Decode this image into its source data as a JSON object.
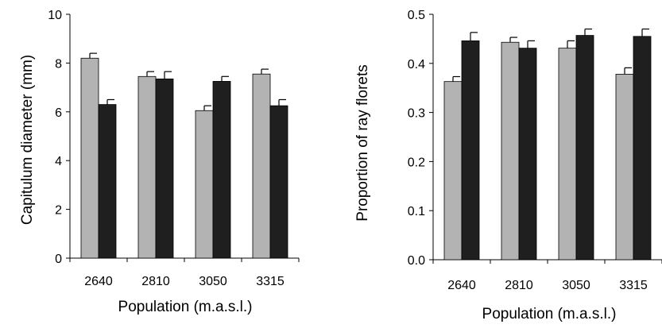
{
  "chart_data": [
    {
      "type": "bar",
      "categories": [
        "2640",
        "2810",
        "3050",
        "3315"
      ],
      "series": [
        {
          "values": [
            8.2,
            7.45,
            6.05,
            7.55
          ],
          "errors": [
            0.2,
            0.2,
            0.2,
            0.2
          ],
          "color": "#b3b3b3"
        },
        {
          "values": [
            6.3,
            7.35,
            7.25,
            6.25
          ],
          "errors": [
            0.2,
            0.3,
            0.2,
            0.25
          ],
          "color": "#1f1f1f"
        }
      ],
      "xlabel": "Population (m.a.s.l.)",
      "ylabel": "Capitulum diameter (mm)",
      "ylim": [
        0,
        10
      ],
      "yticks": [
        "0",
        "2",
        "4",
        "6",
        "8",
        "10"
      ],
      "ytick_values": [
        0,
        2,
        4,
        6,
        8,
        10
      ],
      "grid": false
    },
    {
      "type": "bar",
      "categories": [
        "2640",
        "2810",
        "3050",
        "3315"
      ],
      "series": [
        {
          "values": [
            0.363,
            0.443,
            0.431,
            0.378
          ],
          "errors": [
            0.01,
            0.01,
            0.015,
            0.013
          ],
          "color": "#b3b3b3"
        },
        {
          "values": [
            0.446,
            0.431,
            0.457,
            0.455
          ],
          "errors": [
            0.017,
            0.015,
            0.013,
            0.015
          ],
          "color": "#1f1f1f"
        }
      ],
      "xlabel": "Population (m.a.s.l.)",
      "ylabel": "Proportion of ray florets",
      "ylim": [
        0,
        0.5
      ],
      "yticks": [
        "0.0",
        "0.1",
        "0.2",
        "0.3",
        "0.4",
        "0.5"
      ],
      "ytick_values": [
        0,
        0.1,
        0.2,
        0.3,
        0.4,
        0.5
      ],
      "grid": false
    }
  ]
}
